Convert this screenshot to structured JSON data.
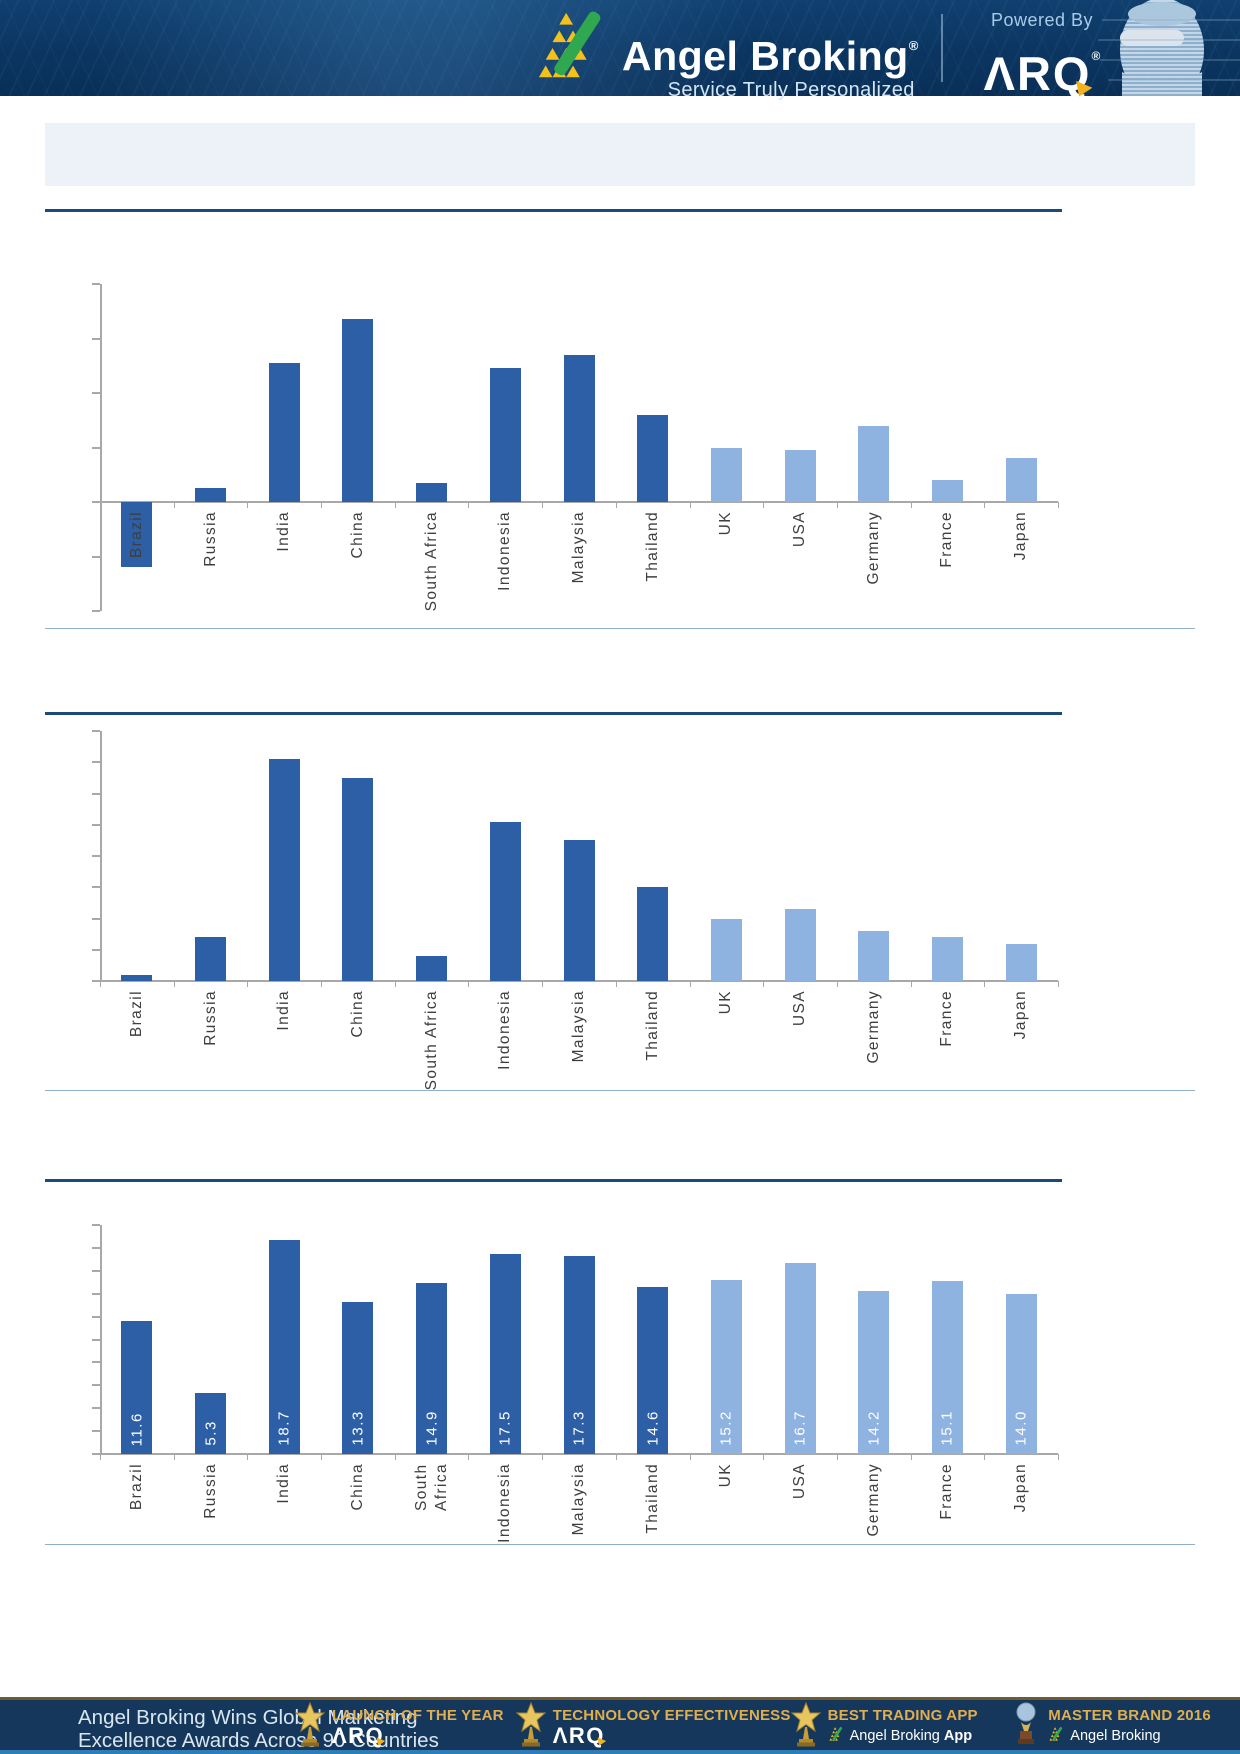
{
  "header": {
    "brand": "Angel Broking",
    "brand_reg": "®",
    "tagline": "Service Truly Personalized",
    "powered_by": "Powered By",
    "arq": "ARQ",
    "arq_reg": "®"
  },
  "banner": {
    "text": ""
  },
  "palette": {
    "bar_dark": "#2d5fa6",
    "bar_light": "#8fb3e0",
    "rule_dark": "#1b4a7d",
    "rule_thin": "#8fb0c9",
    "axis_gray": "#a8a8a8",
    "header_navy": "#0b3560",
    "footer_navy": "#16375c",
    "award_gold": "#dfae4f"
  },
  "chart_data": [
    {
      "type": "bar",
      "categories": [
        "Brazil",
        "Russia",
        "India",
        "China",
        "South Africa",
        "Indonesia",
        "Malaysia",
        "Thailand",
        "UK",
        "USA",
        "Germany",
        "France",
        "Japan"
      ],
      "values": [
        -2.4,
        0.5,
        5.1,
        6.7,
        0.7,
        4.9,
        5.4,
        3.2,
        2.0,
        1.9,
        2.8,
        0.8,
        1.6
      ],
      "title": "",
      "xlabel": "",
      "ylabel": "",
      "ylim": [
        -4,
        8
      ],
      "ytick": 2,
      "grid": false,
      "legend": "none",
      "split_index": 8
    },
    {
      "type": "bar",
      "categories": [
        "Brazil",
        "Russia",
        "India",
        "China",
        "South Africa",
        "Indonesia",
        "Malaysia",
        "Thailand",
        "UK",
        "USA",
        "Germany",
        "France",
        "Japan"
      ],
      "values": [
        0.2,
        1.4,
        7.1,
        6.5,
        0.8,
        5.1,
        4.5,
        3.0,
        2.0,
        2.3,
        1.6,
        1.4,
        1.2
      ],
      "title": "",
      "xlabel": "",
      "ylabel": "",
      "ylim": [
        0,
        8
      ],
      "ytick": 1,
      "grid": false,
      "legend": "none",
      "split_index": 8
    },
    {
      "type": "bar",
      "categories": [
        "Brazil",
        "Russia",
        "India",
        "China",
        "South Africa",
        "Indonesia",
        "Malaysia",
        "Thailand",
        "UK",
        "USA",
        "Germany",
        "France",
        "Japan"
      ],
      "values": [
        11.6,
        5.3,
        18.7,
        13.3,
        14.9,
        17.5,
        17.3,
        14.6,
        15.2,
        16.7,
        14.2,
        15.1,
        14.0
      ],
      "value_labels": [
        "11.6",
        "5.3",
        "18.7",
        "13.3",
        "14.9",
        "17.5",
        "17.3",
        "14.6",
        "15.2",
        "16.7",
        "14.2",
        "15.1",
        "14.0"
      ],
      "title": "",
      "xlabel": "",
      "ylabel": "",
      "ylim": [
        0,
        20
      ],
      "ytick": 2,
      "grid": false,
      "legend": "none",
      "split_index": 8,
      "wrap_labels": true
    }
  ],
  "footer": {
    "headline_line1": "Angel Broking Wins Global Marketing",
    "headline_line2": "Excellence Awards Across 90 Countries",
    "awards": [
      {
        "title": "LAUNCH OF THE YEAR",
        "subtitle": "ARQ",
        "style": "arq",
        "icon": "star-trophy"
      },
      {
        "title": "TECHNOLOGY EFFECTIVENESS",
        "subtitle": "ARQ",
        "style": "arq",
        "icon": "star-trophy"
      },
      {
        "title": "BEST TRADING APP",
        "subtitle": "Angel Broking App",
        "bold_word": "App",
        "style": "brand",
        "icon": "star-trophy"
      },
      {
        "title": "MASTER BRAND 2016",
        "subtitle": "Angel Broking",
        "style": "brand",
        "icon": "globe-trophy"
      }
    ]
  }
}
